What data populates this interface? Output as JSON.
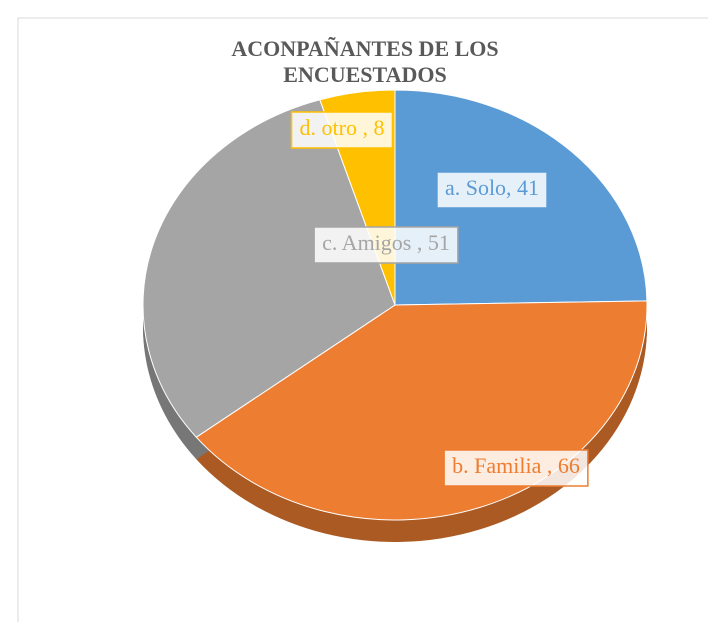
{
  "chart_data": {
    "type": "pie",
    "title": "ACONPAÑANTES DE LOS ENCUESTADOS",
    "values": [
      41,
      66,
      51,
      8
    ],
    "value_labels": [
      "a. Solo, 41",
      "b. Familia , 66",
      "c. Amigos , 51",
      "d. otro , 8"
    ],
    "colors": [
      "#5b9bd5",
      "#ed7d31",
      "#a5a5a5",
      "#ffc000"
    ]
  }
}
